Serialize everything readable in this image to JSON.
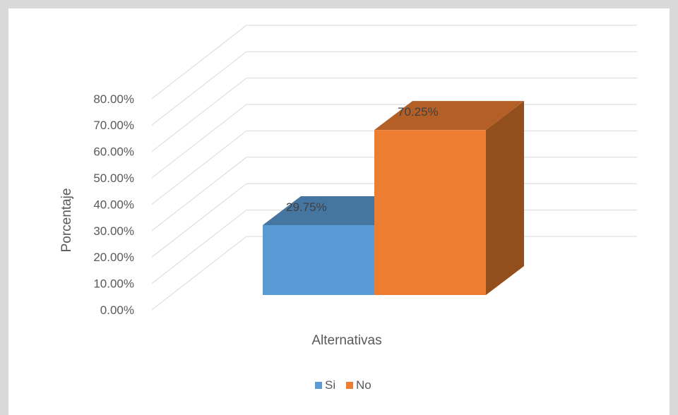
{
  "chart_data": {
    "type": "bar",
    "style": "3d-column",
    "categories": [
      "Alternativas"
    ],
    "series": [
      {
        "name": "Si",
        "values": [
          29.75
        ],
        "label": "29.75%",
        "color": "#5b9bd5"
      },
      {
        "name": "No",
        "values": [
          70.25
        ],
        "label": "70.25%",
        "color": "#ed7d31"
      }
    ],
    "xlabel": "Alternativas",
    "ylabel": "Porcentaje",
    "ylim": [
      0,
      80
    ],
    "yticks": [
      "0.00%",
      "10.00%",
      "20.00%",
      "30.00%",
      "40.00%",
      "50.00%",
      "60.00%",
      "70.00%",
      "80.00%"
    ],
    "grid": true,
    "legend": "bottom"
  }
}
